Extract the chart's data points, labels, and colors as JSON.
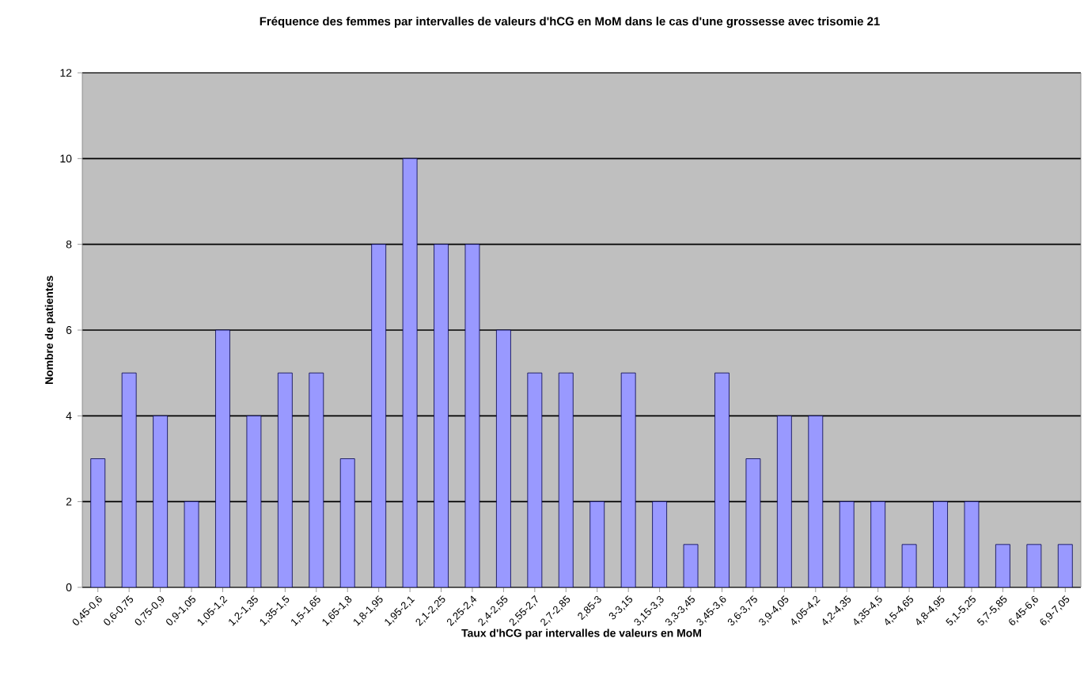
{
  "chart_data": {
    "type": "bar",
    "title": "Fréquence des femmes par intervalles de valeurs d'hCG en MoM dans le cas d'une grossesse avec trisomie 21",
    "xlabel": "Taux d'hCG par intervalles de valeurs en MoM",
    "ylabel": "Nombre de patientes",
    "categories": [
      "0,45-0,6",
      "0,6-0,75",
      "0,75-0,9",
      "0,9-1,05",
      "1,05-1,2",
      "1,2-1,35",
      "1,35-1,5",
      "1,5-1,65",
      "1,65-1,8",
      "1,8-1,95",
      "1,95-2,1",
      "2,1-2,25",
      "2,25-2,4",
      "2,4-2,55",
      "2,55-2,7",
      "2,7-2,85",
      "2,85-3",
      "3-3,15",
      "3,15-3,3",
      "3,3-3,45",
      "3,45-3,6",
      "3,6-3,75",
      "3,9-4,05",
      "4,05-4,2",
      "4,2-4,35",
      "4,35-4,5",
      "4,5-4,65",
      "4,8-4,95",
      "5,1-5,25",
      "5,7-5,85",
      "6,45-6,6",
      "6,9-7,05"
    ],
    "values": [
      3,
      5,
      4,
      2,
      6,
      4,
      5,
      5,
      3,
      8,
      10,
      8,
      8,
      6,
      5,
      5,
      2,
      5,
      2,
      1,
      5,
      3,
      4,
      4,
      2,
      2,
      1,
      2,
      2,
      1,
      1,
      1
    ],
    "color": "#9999ff",
    "ylim": [
      0,
      12
    ],
    "yticks": [
      0,
      2,
      4,
      6,
      8,
      10,
      12
    ],
    "grid": "y"
  }
}
